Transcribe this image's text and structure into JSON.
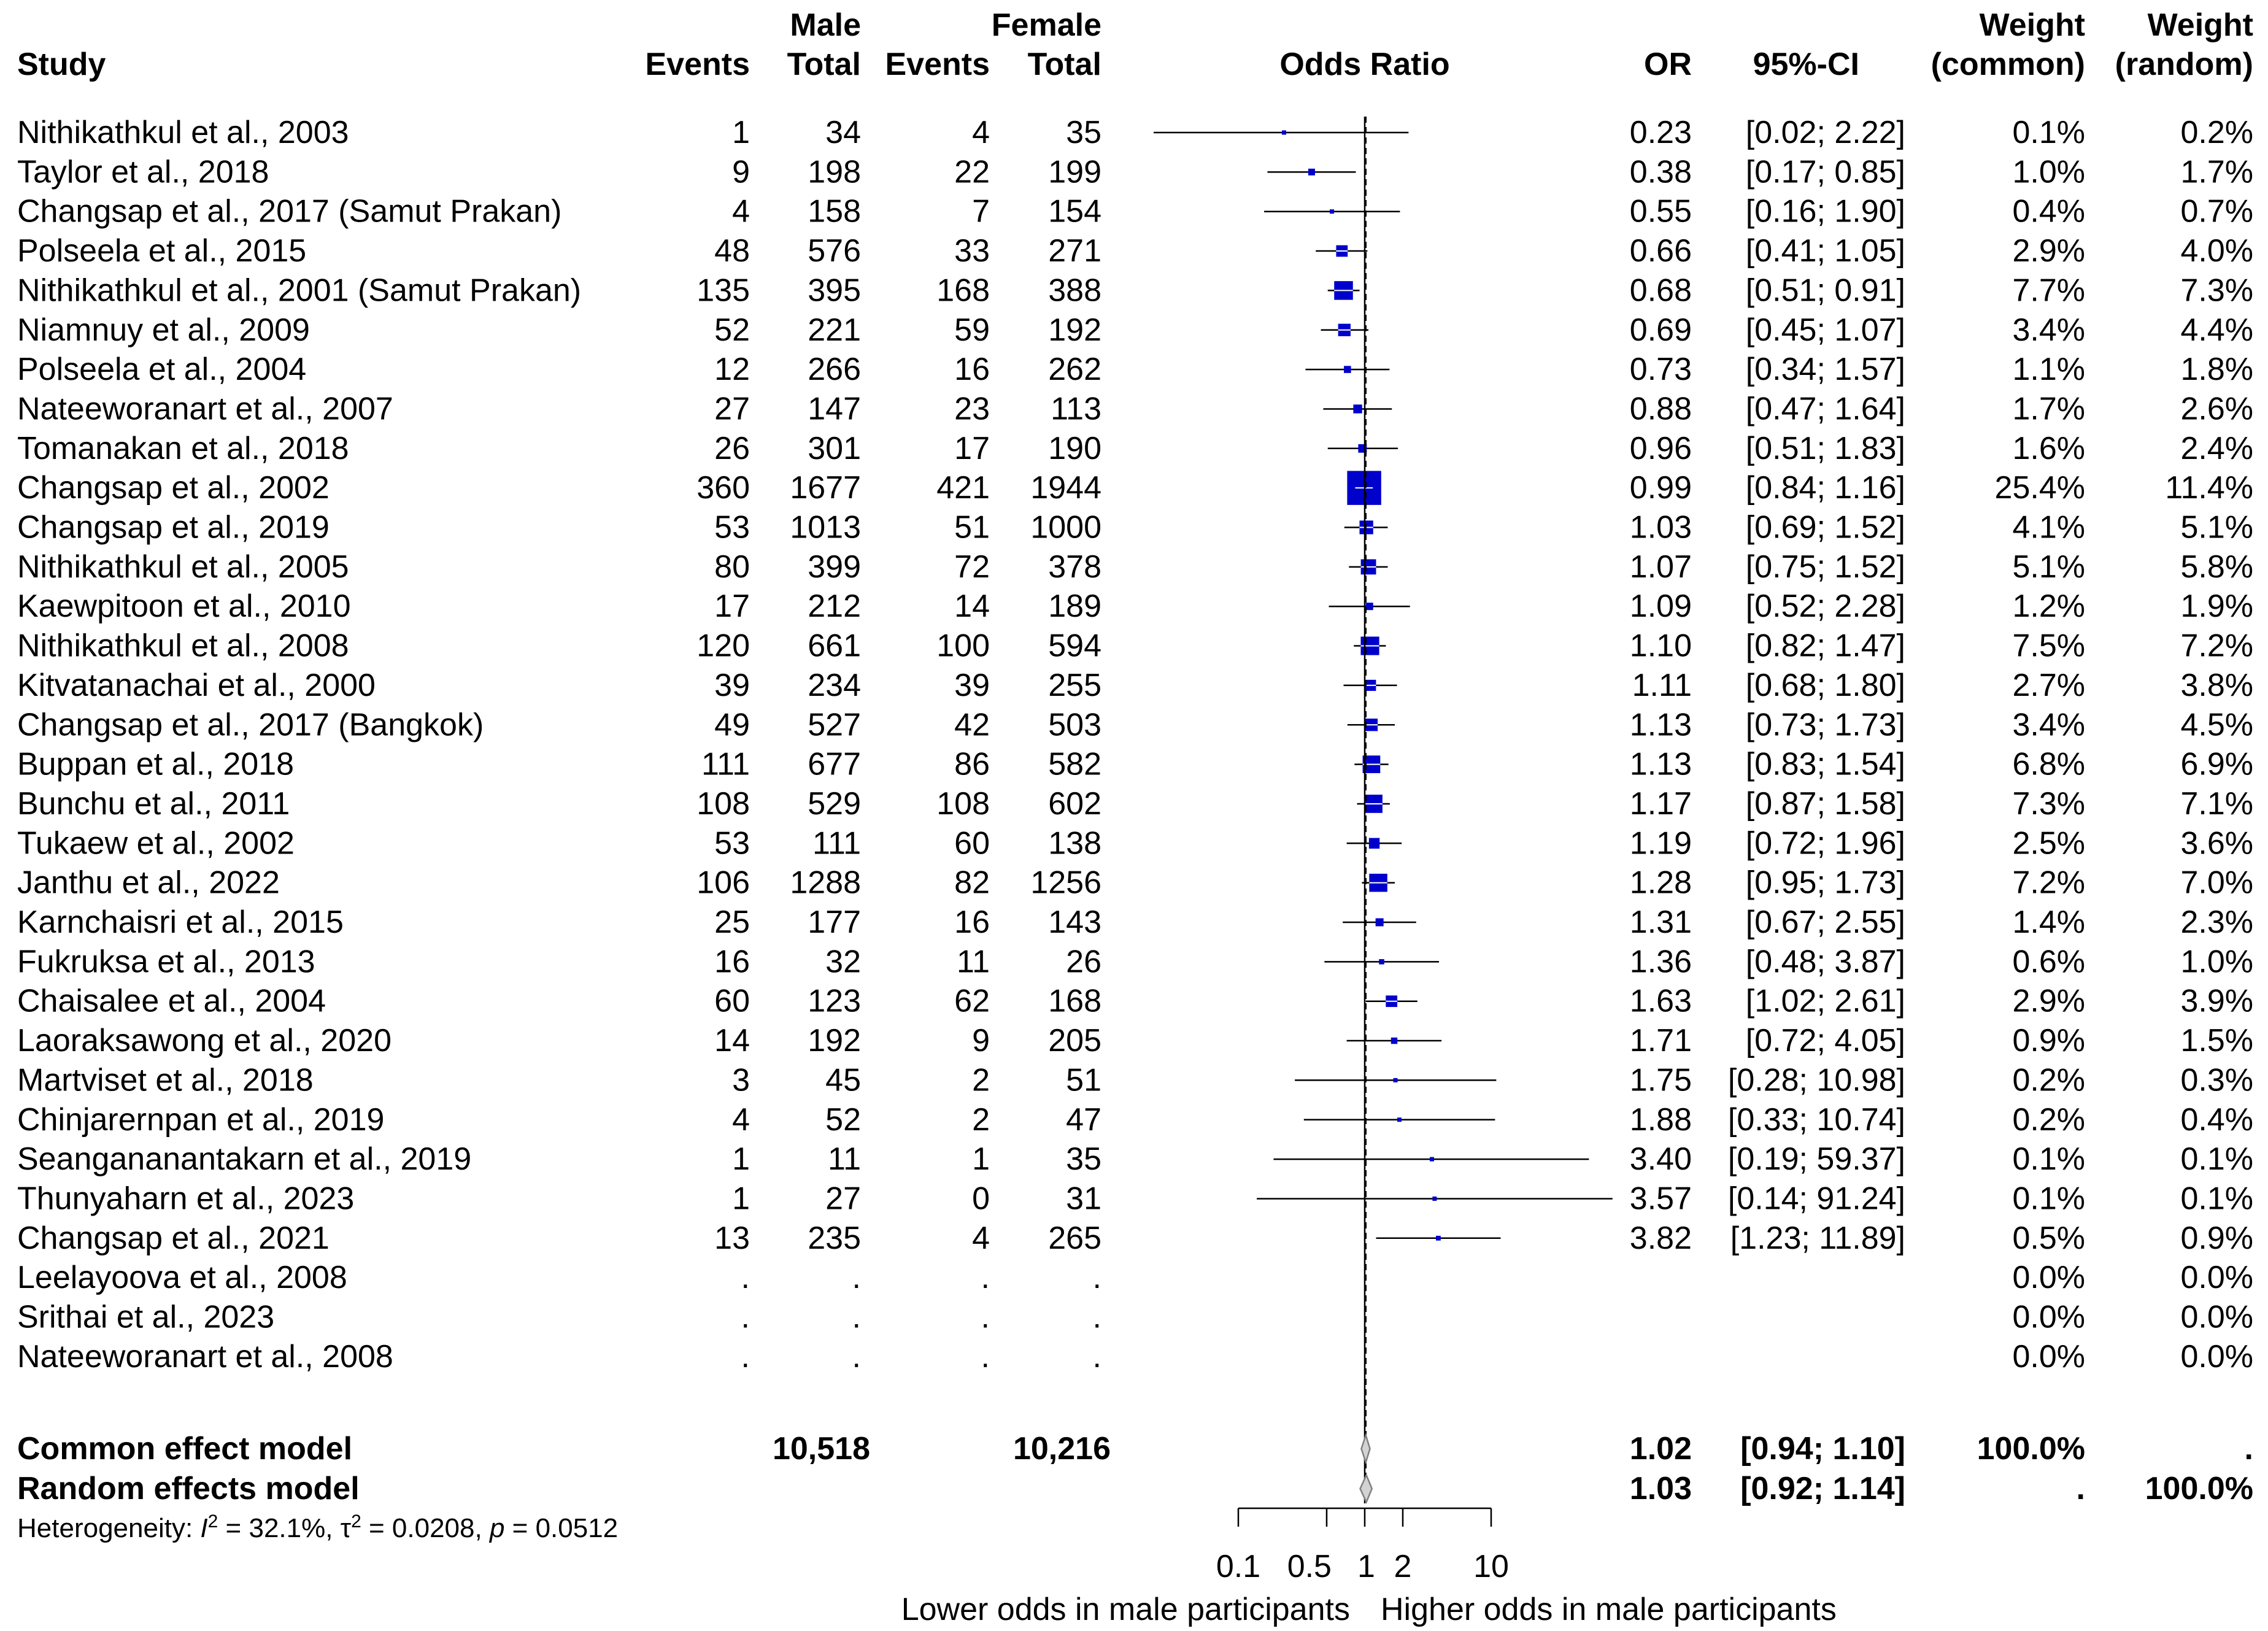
{
  "chart_data": {
    "type": "forest",
    "headers": {
      "study": "Study",
      "male_group": "Male",
      "female_group": "Female",
      "events": "Events",
      "total": "Total",
      "plot": "Odds Ratio",
      "or": "OR",
      "ci": "95%-CI",
      "weight": "Weight",
      "weight_common": "(common)",
      "weight_random": "(random)"
    },
    "studies": [
      {
        "study": "Nithikathkul et al., 2003",
        "m_events": "1",
        "m_total": "34",
        "f_events": "4",
        "f_total": "35",
        "or_text": "0.23",
        "ci_text": "[0.02;  2.22]",
        "w_common": "0.1%",
        "w_random": "0.2%",
        "or": 0.23,
        "lo": 0.02,
        "hi": 2.22,
        "w": 0.1
      },
      {
        "study": "Taylor et al., 2018",
        "m_events": "9",
        "m_total": "198",
        "f_events": "22",
        "f_total": "199",
        "or_text": "0.38",
        "ci_text": "[0.17;  0.85]",
        "w_common": "1.0%",
        "w_random": "1.7%",
        "or": 0.38,
        "lo": 0.17,
        "hi": 0.85,
        "w": 1.0
      },
      {
        "study": "Changsap et al., 2017 (Samut Prakan)",
        "m_events": "4",
        "m_total": "158",
        "f_events": "7",
        "f_total": "154",
        "or_text": "0.55",
        "ci_text": "[0.16;  1.90]",
        "w_common": "0.4%",
        "w_random": "0.7%",
        "or": 0.55,
        "lo": 0.16,
        "hi": 1.9,
        "w": 0.4
      },
      {
        "study": "Polseela et al., 2015",
        "m_events": "48",
        "m_total": "576",
        "f_events": "33",
        "f_total": "271",
        "or_text": "0.66",
        "ci_text": "[0.41;  1.05]",
        "w_common": "2.9%",
        "w_random": "4.0%",
        "or": 0.66,
        "lo": 0.41,
        "hi": 1.05,
        "w": 2.9
      },
      {
        "study": "Nithikathkul et al., 2001 (Samut Prakan)",
        "m_events": "135",
        "m_total": "395",
        "f_events": "168",
        "f_total": "388",
        "or_text": "0.68",
        "ci_text": "[0.51;  0.91]",
        "w_common": "7.7%",
        "w_random": "7.3%",
        "or": 0.68,
        "lo": 0.51,
        "hi": 0.91,
        "w": 7.7
      },
      {
        "study": "Niamnuy et al.,  2009",
        "m_events": "52",
        "m_total": "221",
        "f_events": "59",
        "f_total": "192",
        "or_text": "0.69",
        "ci_text": "[0.45;  1.07]",
        "w_common": "3.4%",
        "w_random": "4.4%",
        "or": 0.69,
        "lo": 0.45,
        "hi": 1.07,
        "w": 3.4
      },
      {
        "study": "Polseela et al., 2004",
        "m_events": "12",
        "m_total": "266",
        "f_events": "16",
        "f_total": "262",
        "or_text": "0.73",
        "ci_text": "[0.34;  1.57]",
        "w_common": "1.1%",
        "w_random": "1.8%",
        "or": 0.73,
        "lo": 0.34,
        "hi": 1.57,
        "w": 1.1
      },
      {
        "study": "Nateeworanart et al., 2007",
        "m_events": "27",
        "m_total": "147",
        "f_events": "23",
        "f_total": "113",
        "or_text": "0.88",
        "ci_text": "[0.47;  1.64]",
        "w_common": "1.7%",
        "w_random": "2.6%",
        "or": 0.88,
        "lo": 0.47,
        "hi": 1.64,
        "w": 1.7
      },
      {
        "study": "Tomanakan et al., 2018",
        "m_events": "26",
        "m_total": "301",
        "f_events": "17",
        "f_total": "190",
        "or_text": "0.96",
        "ci_text": "[0.51;  1.83]",
        "w_common": "1.6%",
        "w_random": "2.4%",
        "or": 0.96,
        "lo": 0.51,
        "hi": 1.83,
        "w": 1.6
      },
      {
        "study": "Changsap et al., 2002",
        "m_events": "360",
        "m_total": "1677",
        "f_events": "421",
        "f_total": "1944",
        "or_text": "0.99",
        "ci_text": "[0.84;  1.16]",
        "w_common": "25.4%",
        "w_random": "11.4%",
        "or": 0.99,
        "lo": 0.84,
        "hi": 1.16,
        "w": 25.4
      },
      {
        "study": "Changsap et al., 2019",
        "m_events": "53",
        "m_total": "1013",
        "f_events": "51",
        "f_total": "1000",
        "or_text": "1.03",
        "ci_text": "[0.69;  1.52]",
        "w_common": "4.1%",
        "w_random": "5.1%",
        "or": 1.03,
        "lo": 0.69,
        "hi": 1.52,
        "w": 4.1
      },
      {
        "study": "Nithikathkul et al., 2005",
        "m_events": "80",
        "m_total": "399",
        "f_events": "72",
        "f_total": "378",
        "or_text": "1.07",
        "ci_text": "[0.75;  1.52]",
        "w_common": "5.1%",
        "w_random": "5.8%",
        "or": 1.07,
        "lo": 0.75,
        "hi": 1.52,
        "w": 5.1
      },
      {
        "study": "Kaewpitoon et al.,  2010",
        "m_events": "17",
        "m_total": "212",
        "f_events": "14",
        "f_total": "189",
        "or_text": "1.09",
        "ci_text": "[0.52;  2.28]",
        "w_common": "1.2%",
        "w_random": "1.9%",
        "or": 1.09,
        "lo": 0.52,
        "hi": 2.28,
        "w": 1.2
      },
      {
        "study": "Nithikathkul et al., 2008",
        "m_events": "120",
        "m_total": "661",
        "f_events": "100",
        "f_total": "594",
        "or_text": "1.10",
        "ci_text": "[0.82;  1.47]",
        "w_common": "7.5%",
        "w_random": "7.2%",
        "or": 1.1,
        "lo": 0.82,
        "hi": 1.47,
        "w": 7.5
      },
      {
        "study": "Kitvatanachai et al., 2000",
        "m_events": "39",
        "m_total": "234",
        "f_events": "39",
        "f_total": "255",
        "or_text": "1.11",
        "ci_text": "[0.68;  1.80]",
        "w_common": "2.7%",
        "w_random": "3.8%",
        "or": 1.11,
        "lo": 0.68,
        "hi": 1.8,
        "w": 2.7
      },
      {
        "study": "Changsap et al., 2017 (Bangkok)",
        "m_events": "49",
        "m_total": "527",
        "f_events": "42",
        "f_total": "503",
        "or_text": "1.13",
        "ci_text": "[0.73;  1.73]",
        "w_common": "3.4%",
        "w_random": "4.5%",
        "or": 1.13,
        "lo": 0.73,
        "hi": 1.73,
        "w": 3.4
      },
      {
        "study": "Buppan et al., 2018",
        "m_events": "111",
        "m_total": "677",
        "f_events": "86",
        "f_total": "582",
        "or_text": "1.13",
        "ci_text": "[0.83;  1.54]",
        "w_common": "6.8%",
        "w_random": "6.9%",
        "or": 1.13,
        "lo": 0.83,
        "hi": 1.54,
        "w": 6.8
      },
      {
        "study": "Bunchu et al., 2011",
        "m_events": "108",
        "m_total": "529",
        "f_events": "108",
        "f_total": "602",
        "or_text": "1.17",
        "ci_text": "[0.87;  1.58]",
        "w_common": "7.3%",
        "w_random": "7.1%",
        "or": 1.17,
        "lo": 0.87,
        "hi": 1.58,
        "w": 7.3
      },
      {
        "study": "Tukaew et al., 2002",
        "m_events": "53",
        "m_total": "111",
        "f_events": "60",
        "f_total": "138",
        "or_text": "1.19",
        "ci_text": "[0.72;  1.96]",
        "w_common": "2.5%",
        "w_random": "3.6%",
        "or": 1.19,
        "lo": 0.72,
        "hi": 1.96,
        "w": 2.5
      },
      {
        "study": "Janthu et al., 2022",
        "m_events": "106",
        "m_total": "1288",
        "f_events": "82",
        "f_total": "1256",
        "or_text": "1.28",
        "ci_text": "[0.95;  1.73]",
        "w_common": "7.2%",
        "w_random": "7.0%",
        "or": 1.28,
        "lo": 0.95,
        "hi": 1.73,
        "w": 7.2
      },
      {
        "study": "Karnchaisri et al.,  2015",
        "m_events": "25",
        "m_total": "177",
        "f_events": "16",
        "f_total": "143",
        "or_text": "1.31",
        "ci_text": "[0.67;  2.55]",
        "w_common": "1.4%",
        "w_random": "2.3%",
        "or": 1.31,
        "lo": 0.67,
        "hi": 2.55,
        "w": 1.4
      },
      {
        "study": "Fukruksa et al., 2013",
        "m_events": "16",
        "m_total": "32",
        "f_events": "11",
        "f_total": "26",
        "or_text": "1.36",
        "ci_text": "[0.48;  3.87]",
        "w_common": "0.6%",
        "w_random": "1.0%",
        "or": 1.36,
        "lo": 0.48,
        "hi": 3.87,
        "w": 0.6
      },
      {
        "study": "Chaisalee et al., 2004",
        "m_events": "60",
        "m_total": "123",
        "f_events": "62",
        "f_total": "168",
        "or_text": "1.63",
        "ci_text": "[1.02;  2.61]",
        "w_common": "2.9%",
        "w_random": "3.9%",
        "or": 1.63,
        "lo": 1.02,
        "hi": 2.61,
        "w": 2.9
      },
      {
        "study": "Laoraksawong et al., 2020",
        "m_events": "14",
        "m_total": "192",
        "f_events": "9",
        "f_total": "205",
        "or_text": "1.71",
        "ci_text": "[0.72;  4.05]",
        "w_common": "0.9%",
        "w_random": "1.5%",
        "or": 1.71,
        "lo": 0.72,
        "hi": 4.05,
        "w": 0.9
      },
      {
        "study": "Martviset et al., 2018",
        "m_events": "3",
        "m_total": "45",
        "f_events": "2",
        "f_total": "51",
        "or_text": "1.75",
        "ci_text": "[0.28; 10.98]",
        "w_common": "0.2%",
        "w_random": "0.3%",
        "or": 1.75,
        "lo": 0.28,
        "hi": 10.98,
        "w": 0.2
      },
      {
        "study": "Chinjarernpan et al.,  2019",
        "m_events": "4",
        "m_total": "52",
        "f_events": "2",
        "f_total": "47",
        "or_text": "1.88",
        "ci_text": "[0.33; 10.74]",
        "w_common": "0.2%",
        "w_random": "0.4%",
        "or": 1.88,
        "lo": 0.33,
        "hi": 10.74,
        "w": 0.2
      },
      {
        "study": "Seangananantakarn et al., 2019",
        "m_events": "1",
        "m_total": "11",
        "f_events": "1",
        "f_total": "35",
        "or_text": "3.40",
        "ci_text": "[0.19; 59.37]",
        "w_common": "0.1%",
        "w_random": "0.1%",
        "or": 3.4,
        "lo": 0.19,
        "hi": 59.37,
        "w": 0.1
      },
      {
        "study": "Thunyaharn et al., 2023",
        "m_events": "1",
        "m_total": "27",
        "f_events": "0",
        "f_total": "31",
        "or_text": "3.57",
        "ci_text": "[0.14; 91.24]",
        "w_common": "0.1%",
        "w_random": "0.1%",
        "or": 3.57,
        "lo": 0.14,
        "hi": 91.24,
        "w": 0.1
      },
      {
        "study": "Changsap et al., 2021",
        "m_events": "13",
        "m_total": "235",
        "f_events": "4",
        "f_total": "265",
        "or_text": "3.82",
        "ci_text": "[1.23; 11.89]",
        "w_common": "0.5%",
        "w_random": "0.9%",
        "or": 3.82,
        "lo": 1.23,
        "hi": 11.89,
        "w": 0.5
      },
      {
        "study": "Leelayoova et al., 2008",
        "m_events": ".",
        "m_total": ".",
        "f_events": ".",
        "f_total": ".",
        "or_text": "",
        "ci_text": "",
        "w_common": "0.0%",
        "w_random": "0.0%",
        "or": null,
        "lo": null,
        "hi": null,
        "w": 0
      },
      {
        "study": "Srithai et al., 2023",
        "m_events": ".",
        "m_total": ".",
        "f_events": ".",
        "f_total": ".",
        "or_text": "",
        "ci_text": "",
        "w_common": "0.0%",
        "w_random": "0.0%",
        "or": null,
        "lo": null,
        "hi": null,
        "w": 0
      },
      {
        "study": "Nateeworanart et al.,  2008",
        "m_events": ".",
        "m_total": ".",
        "f_events": ".",
        "f_total": ".",
        "or_text": "",
        "ci_text": "",
        "w_common": "0.0%",
        "w_random": "0.0%",
        "or": null,
        "lo": null,
        "hi": null,
        "w": 0
      }
    ],
    "pooled": [
      {
        "label": "Common effect model",
        "m_total": "10,518",
        "f_total": "10,216",
        "or_text": "1.02",
        "ci_text": "[0.94;  1.10]",
        "w_common": "100.0%",
        "w_random": ".",
        "or": 1.02,
        "lo": 0.94,
        "hi": 1.1
      },
      {
        "label": "Random effects model",
        "m_total": "",
        "f_total": "",
        "or_text": "1.03",
        "ci_text": "[0.92;  1.14]",
        "w_common": ".",
        "w_random": "100.0%",
        "or": 1.03,
        "lo": 0.92,
        "hi": 1.14
      }
    ],
    "heterogeneity": {
      "prefix": "Heterogeneity: ",
      "i2_label": "I",
      "i2_exp": "2",
      "i2_value": " = 32.1%, ",
      "tau_label": "τ",
      "tau_exp": "2",
      "tau_value": " = 0.0208, ",
      "p_label": "p",
      "p_value": " = 0.0512"
    },
    "x_axis": {
      "scale": "log",
      "ticks": [
        0.1,
        0.5,
        1,
        2,
        10
      ],
      "tick_labels": [
        "0.1",
        "0.5",
        "1",
        "2",
        "10"
      ],
      "null_line": 1,
      "xlim": [
        0.1,
        10
      ]
    },
    "favours_left": "Lower odds in male participants",
    "favours_right": "Higher odds in male participants",
    "colors": {
      "square": "#0000cc",
      "text": "#000000",
      "diamond_fill": "#d3d3d3",
      "diamond_stroke": "#808080"
    }
  }
}
